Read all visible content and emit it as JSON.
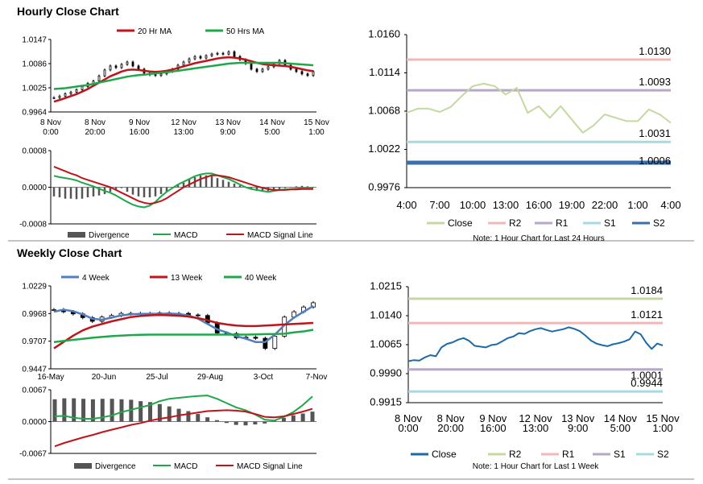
{
  "sections": {
    "hourly_title": "Hourly Close Chart",
    "weekly_title": "Weekly Close Chart"
  },
  "colors": {
    "ma_short": "#c0141b",
    "ma_long": "#1ea84a",
    "ma_4w": "#4f7fbf",
    "close_green": "#c4d9a0",
    "r2": "#f0b8b8",
    "r1": "#b9a6cc",
    "s1": "#a5dbe0",
    "s2": "#3a6fae",
    "weekly_r2": "#c4d9a0",
    "weekly_r1": "#f0b8b8",
    "weekly_s1": "#b9a6cc",
    "weekly_s2": "#a5dbe0",
    "weekly_close": "#1c6aa8",
    "divergence": "#555555"
  },
  "chart_data": [
    {
      "id": "hourly_candles",
      "type": "line",
      "title": "",
      "legend": [
        "20 Hr MA",
        "50 Hrs MA"
      ],
      "y_ticks": [
        "1.0147",
        "1.0086",
        "1.0025",
        "0.9964"
      ],
      "ylim": [
        0.9964,
        1.0147
      ],
      "x_labels": [
        "8 Nov\n0:00",
        "8 Nov\n20:00",
        "9 Nov\n16:00",
        "12 Nov\n13:00",
        "13 Nov\n9:00",
        "14 Nov\n5:00",
        "15 Nov\n1:00"
      ],
      "close": [
        1.0,
        1.0004,
        1.001,
        1.0014,
        1.002,
        1.0028,
        1.0036,
        1.0042,
        1.0055,
        1.007,
        1.008,
        1.0076,
        1.0084,
        1.009,
        1.008,
        1.0072,
        1.0062,
        1.0058,
        1.0056,
        1.006,
        1.0066,
        1.0072,
        1.0082,
        1.009,
        1.0098,
        1.0104,
        1.01,
        1.0106,
        1.011,
        1.0112,
        1.011,
        1.0116,
        1.0104,
        1.0096,
        1.0086,
        1.0072,
        1.0066,
        1.0072,
        1.0078,
        1.0086,
        1.0094,
        1.0082,
        1.0072,
        1.0066,
        1.006,
        1.0056,
        1.0066
      ],
      "ma20": [
        0.999,
        0.9994,
        0.9999,
        1.0004,
        1.0009,
        1.0015,
        1.0022,
        1.003,
        1.0038,
        1.0046,
        1.0054,
        1.006,
        1.0066,
        1.007,
        1.0071,
        1.007,
        1.0068,
        1.0066,
        1.0065,
        1.0066,
        1.0068,
        1.0071,
        1.0075,
        1.0079,
        1.0083,
        1.0087,
        1.009,
        1.0093,
        1.0096,
        1.0099,
        1.0101,
        1.0102,
        1.0101,
        1.0099,
        1.0096,
        1.0092,
        1.0088,
        1.0085,
        1.0083,
        1.0082,
        1.0081,
        1.008,
        1.0078,
        1.0075,
        1.0072,
        1.0069,
        1.0067
      ],
      "ma50": [
        1.0022,
        1.0023,
        1.0024,
        1.0026,
        1.0028,
        1.003,
        1.0032,
        1.0035,
        1.0038,
        1.0041,
        1.0044,
        1.0047,
        1.005,
        1.0053,
        1.0055,
        1.0057,
        1.0058,
        1.006,
        1.0061,
        1.0063,
        1.0064,
        1.0066,
        1.0068,
        1.007,
        1.0072,
        1.0074,
        1.0076,
        1.0078,
        1.008,
        1.0082,
        1.0084,
        1.0086,
        1.0087,
        1.0088,
        1.0088,
        1.0088,
        1.0088,
        1.0088,
        1.0088,
        1.0088,
        1.0088,
        1.0087,
        1.0086,
        1.0085,
        1.0084,
        1.0083,
        1.0082
      ]
    },
    {
      "id": "hourly_macd",
      "type": "bar",
      "legend": [
        "Divergence",
        "MACD",
        "MACD Signal Line"
      ],
      "y_ticks": [
        "0.0008",
        "0.0000",
        "-0.0008"
      ],
      "ylim": [
        -0.0008,
        0.0008
      ],
      "divergence": [
        -0.0002,
        -0.00022,
        -0.00025,
        -0.00025,
        -0.00026,
        -0.00025,
        -0.00022,
        -0.0002,
        -0.00018,
        -0.00015,
        -0.0001,
        -5e-05,
        -2e-05,
        -0.0001,
        -0.00016,
        -0.0002,
        -0.00022,
        -0.00022,
        -0.0002,
        -0.00015,
        -0.0001,
        -2e-05,
        5e-05,
        0.0001,
        0.00018,
        0.00022,
        0.00026,
        0.00026,
        0.00024,
        0.0002,
        0.00016,
        0.00012,
        8e-05,
        4e-05,
        0.0,
        -4e-05,
        -8e-05,
        -0.0001,
        -8e-05,
        -6e-05,
        -4e-05,
        -2e-05,
        0.0,
        2e-05,
        3e-05,
        2e-05,
        1e-05
      ],
      "macd": [
        0.00025,
        0.00022,
        0.0002,
        0.00018,
        0.00015,
        0.0001,
        6e-05,
        2e-05,
        -3e-05,
        -8e-05,
        -0.00012,
        -0.00018,
        -0.00025,
        -0.00032,
        -0.00038,
        -0.00042,
        -0.00044,
        -0.0004,
        -0.00032,
        -0.0002,
        -0.0001,
        -2e-05,
        6e-05,
        0.00012,
        0.00018,
        0.00024,
        0.00028,
        0.0003,
        0.0003,
        0.00026,
        0.00022,
        0.00018,
        0.00012,
        6e-05,
        0.0,
        -4e-05,
        -6e-05,
        -8e-05,
        -0.0001,
        -8e-05,
        -6e-05,
        -5e-05,
        -4e-05,
        -3e-05,
        -2e-05,
        -2e-05,
        -2e-05
      ],
      "signal": [
        0.00045,
        0.0004,
        0.00035,
        0.0003,
        0.00026,
        0.0002,
        0.00016,
        0.00012,
        8e-05,
        4e-05,
        0.0,
        -6e-05,
        -0.00012,
        -0.00018,
        -0.00024,
        -0.0003,
        -0.00034,
        -0.00036,
        -0.00034,
        -0.0003,
        -0.00024,
        -0.00016,
        -8e-05,
        0.0,
        6e-05,
        0.00012,
        0.00018,
        0.00022,
        0.00026,
        0.00026,
        0.00024,
        0.00022,
        0.00018,
        0.00014,
        0.0001,
        6e-05,
        2e-05,
        -1e-05,
        -4e-05,
        -6e-05,
        -6e-05,
        -6e-05,
        -5e-05,
        -5e-05,
        -4e-05,
        -4e-05,
        -4e-05
      ]
    },
    {
      "id": "hourly_pivots",
      "type": "line",
      "legend": [
        "Close",
        "R2",
        "R1",
        "S1",
        "S2"
      ],
      "note": "Note: 1 Hour Chart for Last 24 Hours",
      "y_ticks": [
        "1.0160",
        "1.0114",
        "1.0068",
        "1.0022",
        "0.9976"
      ],
      "ylim": [
        0.9976,
        1.016
      ],
      "x_labels": [
        "4:00",
        "7:00",
        "10:00",
        "13:00",
        "16:00",
        "19:00",
        "22:00",
        "1:00",
        "4:00"
      ],
      "close": [
        1.0066,
        1.0071,
        1.0071,
        1.0067,
        1.0073,
        1.0086,
        1.0098,
        1.0101,
        1.0098,
        1.0088,
        1.0096,
        1.0066,
        1.0074,
        1.006,
        1.0074,
        1.0058,
        1.0042,
        1.0051,
        1.0064,
        1.006,
        1.0056,
        1.0056,
        1.007,
        1.0064,
        1.0054
      ],
      "levels": [
        {
          "name": "R2",
          "value": 1.013,
          "label": "1.0130"
        },
        {
          "name": "R1",
          "value": 1.0093,
          "label": "1.0093"
        },
        {
          "name": "S1",
          "value": 1.0031,
          "label": "1.0031"
        },
        {
          "name": "S2",
          "value": 1.0006,
          "label": "1.0006"
        }
      ]
    },
    {
      "id": "weekly_candles",
      "type": "line",
      "legend": [
        "4 Week",
        "13 Week",
        "40 Week"
      ],
      "y_ticks": [
        "1.0229",
        "0.9968",
        "0.9707",
        "0.9447"
      ],
      "ylim": [
        0.9447,
        1.0229
      ],
      "x_labels": [
        "16-May",
        "20-Jun",
        "25-Jul",
        "29-Aug",
        "3-Oct",
        "7-Nov"
      ],
      "close": [
        1.0005,
        0.9985,
        0.9965,
        0.993,
        0.9895,
        0.9935,
        0.995,
        0.997,
        0.9965,
        0.997,
        0.996,
        0.9975,
        0.9965,
        0.997,
        0.9955,
        0.995,
        0.988,
        0.9785,
        0.978,
        0.974,
        0.9745,
        0.9735,
        0.964,
        0.9755,
        0.9935,
        0.9985,
        1.003,
        1.007
      ],
      "w4": [
        0.9985,
        1.0005,
        0.999,
        0.996,
        0.992,
        0.991,
        0.993,
        0.995,
        0.9962,
        0.9965,
        0.9966,
        0.9966,
        0.9968,
        0.9964,
        0.995,
        0.992,
        0.987,
        0.982,
        0.979,
        0.9755,
        0.973,
        0.97,
        0.97,
        0.977,
        0.986,
        0.993,
        0.9985,
        1.004
      ],
      "w13": [
        0.964,
        0.97,
        0.976,
        0.981,
        0.9845,
        0.987,
        0.9895,
        0.9915,
        0.9935,
        0.9945,
        0.9952,
        0.9955,
        0.9952,
        0.9948,
        0.994,
        0.9925,
        0.9905,
        0.988,
        0.9865,
        0.9855,
        0.985,
        0.985,
        0.9855,
        0.986,
        0.9865,
        0.987,
        0.9875,
        0.988
      ],
      "w40": [
        0.97,
        0.971,
        0.972,
        0.973,
        0.974,
        0.9748,
        0.9755,
        0.976,
        0.9765,
        0.9768,
        0.977,
        0.977,
        0.977,
        0.977,
        0.977,
        0.977,
        0.977,
        0.977,
        0.977,
        0.977,
        0.977,
        0.9772,
        0.9774,
        0.9776,
        0.9778,
        0.979,
        0.98,
        0.9815
      ]
    },
    {
      "id": "weekly_macd",
      "type": "bar",
      "legend": [
        "Divergence",
        "MACD",
        "MACD Signal Line"
      ],
      "y_ticks": [
        "0.0067",
        "0.0000",
        "-0.0067"
      ],
      "ylim": [
        -0.0067,
        0.0067
      ],
      "divergence": [
        0.0047,
        0.0049,
        0.0049,
        0.0048,
        0.0047,
        0.0048,
        0.0048,
        0.0047,
        0.0046,
        0.0043,
        0.0041,
        0.0037,
        0.0032,
        0.0027,
        0.0022,
        0.0016,
        0.0009,
        0.0003,
        -0.0003,
        -0.0007,
        -0.0008,
        -0.0006,
        -0.0004,
        0.0002,
        0.0008,
        0.0013,
        0.0017,
        0.0021
      ],
      "macd": [
        0.0011,
        0.0012,
        0.0008,
        0.0006,
        0.0006,
        0.0009,
        0.0013,
        0.002,
        0.0025,
        0.003,
        0.0035,
        0.0043,
        0.0048,
        0.005,
        0.0052,
        0.0054,
        0.0055,
        0.0048,
        0.0039,
        0.003,
        0.0024,
        0.0015,
        0.0004,
        0.0002,
        0.001,
        0.002,
        0.0035,
        0.0053
      ],
      "signal": [
        -0.0052,
        -0.0045,
        -0.0039,
        -0.0033,
        -0.0028,
        -0.0022,
        -0.0017,
        -0.0012,
        -0.0007,
        -0.0003,
        0.0002,
        0.0006,
        0.0009,
        0.0013,
        0.0016,
        0.0019,
        0.0022,
        0.0023,
        0.0024,
        0.0023,
        0.0021,
        0.0016,
        0.001,
        0.0009,
        0.0011,
        0.0016,
        0.0021,
        0.0027
      ]
    },
    {
      "id": "weekly_pivots",
      "type": "line",
      "legend": [
        "Close",
        "R2",
        "R1",
        "S1",
        "S2"
      ],
      "note": "Note: 1 Hour Chart for Last 1 Week",
      "y_ticks": [
        "1.0215",
        "1.0140",
        "1.0065",
        "0.9990",
        "0.9915"
      ],
      "ylim": [
        0.9915,
        1.0215
      ],
      "x_labels": [
        "8 Nov\n0:00",
        "8 Nov\n20:00",
        "9 Nov\n16:00",
        "12 Nov\n13:00",
        "13 Nov\n9:00",
        "14 Nov\n5:00",
        "15 Nov\n1:00"
      ],
      "close": [
        1.0022,
        1.0025,
        1.0024,
        1.0032,
        1.0038,
        1.0035,
        1.0058,
        1.0067,
        1.0071,
        1.0078,
        1.0082,
        1.0075,
        1.0062,
        1.006,
        1.0058,
        1.0064,
        1.0066,
        1.0074,
        1.0082,
        1.0086,
        1.0095,
        1.0093,
        1.01,
        1.0105,
        1.0108,
        1.0103,
        1.0099,
        1.0102,
        1.0105,
        1.011,
        1.0106,
        1.01,
        1.0089,
        1.0076,
        1.0068,
        1.0064,
        1.0061,
        1.0066,
        1.0069,
        1.0073,
        1.0079,
        1.0099,
        1.0092,
        1.007,
        1.0054,
        1.0068,
        1.0063
      ],
      "levels": [
        {
          "name": "R2",
          "value": 1.0184,
          "label": "1.0184"
        },
        {
          "name": "R1",
          "value": 1.0121,
          "label": "1.0121"
        },
        {
          "name": "S1",
          "value": 1.0001,
          "label": "1.0001"
        },
        {
          "name": "S2",
          "value": 0.9944,
          "label": "0.9944"
        }
      ]
    }
  ]
}
